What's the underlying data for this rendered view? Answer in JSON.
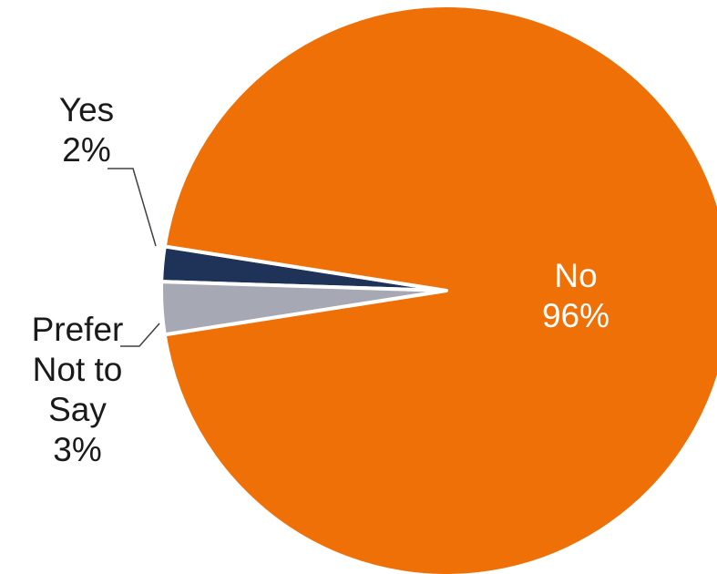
{
  "chart_data": {
    "type": "pie",
    "slices": [
      {
        "label": "No",
        "value": 96,
        "display": "96%",
        "color": "#F07008"
      },
      {
        "label": "Yes",
        "value": 2,
        "display": "2%",
        "color": "#1F3358"
      },
      {
        "label": "Prefer Not to Say",
        "value": 3,
        "display": "3%",
        "color": "#A6A9B3"
      }
    ]
  },
  "labels": {
    "no": {
      "name": "No",
      "pct": "96%"
    },
    "yes": {
      "name": "Yes",
      "pct": "2%"
    },
    "prefer": {
      "line1": "Prefer",
      "line2": "Not to",
      "line3": "Say",
      "pct": "3%"
    }
  }
}
